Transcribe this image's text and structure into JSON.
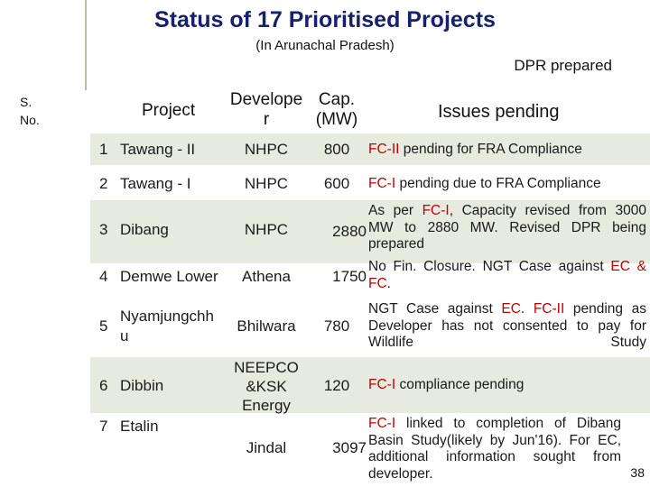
{
  "title": "Status of 17 Prioritised Projects",
  "subtitle": "(In Arunachal Pradesh)",
  "status_label": "DPR prepared",
  "headers": {
    "sno_line1": "S.",
    "sno_line2": "No.",
    "project": "Project",
    "developer_line1": "Develope",
    "developer_line2": "r",
    "cap_line1": "Cap.",
    "cap_line2": "(MW)",
    "issues": "Issues pending"
  },
  "rows": [
    {
      "sno": "1",
      "project": "Tawang - II",
      "developer": "NHPC",
      "cap": "800",
      "issue": [
        {
          "t": "FC-II",
          "red": true
        },
        {
          "t": " pending for FRA Compliance"
        }
      ]
    },
    {
      "sno": "2",
      "project": "Tawang - I",
      "developer": "NHPC",
      "cap": "600",
      "issue": [
        {
          "t": "FC-I",
          "red": true
        },
        {
          "t": " pending due to FRA Compliance"
        }
      ]
    },
    {
      "sno": "3",
      "project": "Dibang",
      "developer": "NHPC",
      "cap": "2880",
      "issue": [
        {
          "t": "As per "
        },
        {
          "t": "FC-I",
          "red": true
        },
        {
          "t": ", Capacity revised from 3000 MW to 2880 MW. Revised DPR being prepared"
        }
      ]
    },
    {
      "sno": "4",
      "project": "Demwe Lower",
      "developer": "Athena",
      "cap": "1750",
      "issue": [
        {
          "t": "No Fin. Closure. NGT Case against "
        },
        {
          "t": "EC",
          "red": true
        },
        {
          "t": " "
        },
        {
          "t": "& FC",
          "red": true
        },
        {
          "t": "."
        }
      ]
    },
    {
      "sno": "5",
      "project_line1": "Nyamjungchh",
      "project_line2": "u",
      "developer": "Bhilwara",
      "cap": "780",
      "issue": [
        {
          "t": "NGT Case against "
        },
        {
          "t": "EC",
          "red": true
        },
        {
          "t": ". "
        },
        {
          "t": "FC-II",
          "red": true
        },
        {
          "t": " pending as Developer has not consented to pay for Wildlife Study"
        }
      ]
    },
    {
      "sno": "6",
      "project": "Dibbin",
      "developer_line1": "NEEPCO",
      "developer_line2": "&KSK",
      "developer_line3": "Energy",
      "cap": "120",
      "issue": [
        {
          "t": "FC-I",
          "red": true
        },
        {
          "t": " compliance pending"
        }
      ]
    },
    {
      "sno": "7",
      "project": "Etalin",
      "developer": "Jindal",
      "cap": "3097",
      "issue": [
        {
          "t": "FC-I",
          "red": true
        },
        {
          "t": " linked to completion of Dibang Basin Study(likely by Jun'16). For EC, additional information sought from developer."
        }
      ]
    }
  ],
  "page_number": "38",
  "colors": {
    "title": "#17206b",
    "highlight_red": "#c00000",
    "row_band": "#e6eadf",
    "accent_line": "#a9c79a"
  }
}
